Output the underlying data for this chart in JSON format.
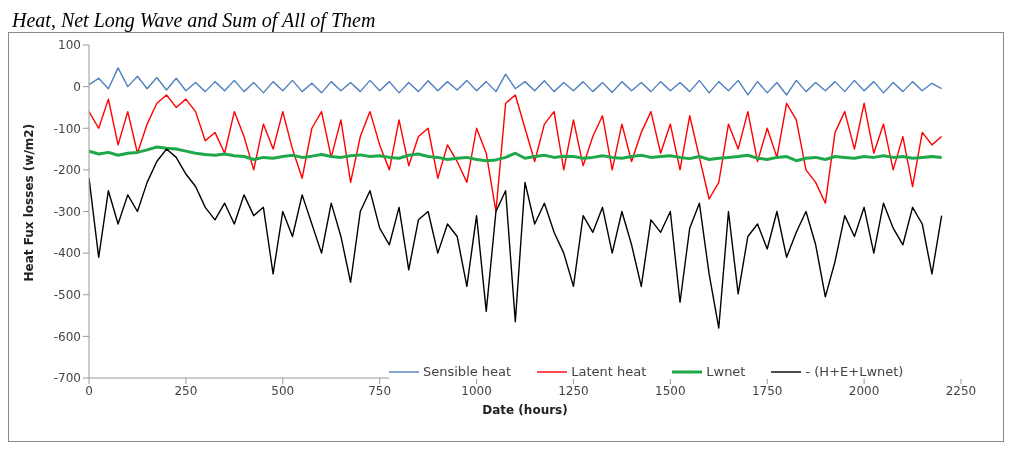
{
  "chart_data": {
    "type": "line",
    "title": "Heat, Net Long Wave and Sum of All of Them",
    "xlabel": "Date (hours)",
    "ylabel": "Heat Fux losses (w/m2)",
    "x": [
      0,
      25,
      50,
      75,
      100,
      125,
      150,
      175,
      200,
      225,
      250,
      275,
      300,
      325,
      350,
      375,
      400,
      425,
      450,
      475,
      500,
      525,
      550,
      575,
      600,
      625,
      650,
      675,
      700,
      725,
      750,
      775,
      800,
      825,
      850,
      875,
      900,
      925,
      950,
      975,
      1000,
      1025,
      1050,
      1075,
      1100,
      1125,
      1150,
      1175,
      1200,
      1225,
      1250,
      1275,
      1300,
      1325,
      1350,
      1375,
      1400,
      1425,
      1450,
      1475,
      1500,
      1525,
      1550,
      1575,
      1600,
      1625,
      1650,
      1675,
      1700,
      1725,
      1750,
      1775,
      1800,
      1825,
      1850,
      1875,
      1900,
      1925,
      1950,
      1975,
      2000,
      2025,
      2050,
      2075,
      2100,
      2125,
      2150,
      2175,
      2200
    ],
    "series": [
      {
        "name": "Sensible heat",
        "color": "#4f81bd",
        "values": [
          5,
          20,
          -5,
          45,
          0,
          25,
          -5,
          22,
          -8,
          20,
          -10,
          10,
          -12,
          12,
          -10,
          15,
          -12,
          10,
          -15,
          12,
          -10,
          15,
          -12,
          8,
          -15,
          12,
          -10,
          10,
          -12,
          15,
          -10,
          12,
          -15,
          10,
          -12,
          14,
          -10,
          12,
          -8,
          15,
          -10,
          12,
          -12,
          30,
          -5,
          12,
          -10,
          14,
          -12,
          10,
          -10,
          12,
          -12,
          10,
          -14,
          12,
          -10,
          10,
          -12,
          12,
          -10,
          10,
          -12,
          15,
          -15,
          12,
          -10,
          15,
          -20,
          12,
          -15,
          10,
          -20,
          15,
          -12,
          10,
          -10,
          12,
          -12,
          15,
          -10,
          12,
          -15,
          10,
          -12,
          12,
          -10,
          8,
          -5
        ]
      },
      {
        "name": "Latent heat",
        "color": "#ff0000",
        "values": [
          -60,
          -100,
          -30,
          -140,
          -60,
          -160,
          -90,
          -40,
          -20,
          -50,
          -30,
          -60,
          -130,
          -110,
          -160,
          -60,
          -120,
          -200,
          -90,
          -150,
          -60,
          -150,
          -220,
          -100,
          -60,
          -170,
          -80,
          -230,
          -120,
          -60,
          -140,
          -200,
          -80,
          -190,
          -120,
          -100,
          -220,
          -140,
          -180,
          -230,
          -100,
          -160,
          -300,
          -40,
          -20,
          -100,
          -180,
          -90,
          -60,
          -200,
          -80,
          -190,
          -120,
          -70,
          -200,
          -90,
          -180,
          -110,
          -60,
          -160,
          -90,
          -200,
          -70,
          -170,
          -270,
          -230,
          -90,
          -150,
          -60,
          -180,
          -100,
          -170,
          -40,
          -80,
          -200,
          -230,
          -280,
          -110,
          -60,
          -150,
          -40,
          -160,
          -90,
          -200,
          -120,
          -240,
          -110,
          -140,
          -120
        ]
      },
      {
        "name": "Lwnet",
        "color": "#1fa84a",
        "values": [
          -155,
          -162,
          -158,
          -165,
          -160,
          -158,
          -152,
          -145,
          -148,
          -150,
          -155,
          -160,
          -163,
          -165,
          -162,
          -166,
          -168,
          -175,
          -170,
          -172,
          -168,
          -165,
          -170,
          -167,
          -163,
          -168,
          -170,
          -166,
          -164,
          -168,
          -166,
          -170,
          -172,
          -165,
          -162,
          -168,
          -170,
          -175,
          -172,
          -170,
          -175,
          -178,
          -176,
          -170,
          -160,
          -172,
          -168,
          -165,
          -170,
          -167,
          -168,
          -172,
          -170,
          -166,
          -170,
          -172,
          -168,
          -165,
          -170,
          -168,
          -166,
          -170,
          -173,
          -168,
          -175,
          -172,
          -170,
          -168,
          -165,
          -172,
          -175,
          -170,
          -168,
          -178,
          -172,
          -170,
          -175,
          -168,
          -170,
          -172,
          -168,
          -170,
          -166,
          -170,
          -168,
          -172,
          -170,
          -168,
          -170
        ]
      },
      {
        "name": "- (H+E+Lwnet)",
        "color": "#000000",
        "values": [
          -220,
          -410,
          -250,
          -330,
          -260,
          -300,
          -230,
          -180,
          -150,
          -170,
          -210,
          -240,
          -290,
          -320,
          -280,
          -330,
          -260,
          -310,
          -290,
          -450,
          -300,
          -360,
          -260,
          -330,
          -400,
          -280,
          -360,
          -470,
          -300,
          -250,
          -340,
          -380,
          -290,
          -440,
          -320,
          -300,
          -400,
          -330,
          -360,
          -480,
          -310,
          -540,
          -300,
          -250,
          -565,
          -230,
          -330,
          -280,
          -350,
          -400,
          -480,
          -310,
          -350,
          -290,
          -400,
          -300,
          -380,
          -480,
          -320,
          -350,
          -300,
          -518,
          -340,
          -280,
          -450,
          -580,
          -300,
          -498,
          -360,
          -330,
          -390,
          -300,
          -410,
          -350,
          -300,
          -380,
          -505,
          -420,
          -310,
          -360,
          -290,
          -400,
          -280,
          -340,
          -380,
          -290,
          -330,
          -450,
          -310
        ]
      }
    ],
    "xlim": [
      0,
      2250
    ],
    "xticks": [
      0,
      250,
      500,
      750,
      1000,
      1250,
      1500,
      1750,
      2000,
      2250
    ],
    "ylim": [
      -700,
      100
    ],
    "yticks": [
      -700,
      -600,
      -500,
      -400,
      -300,
      -200,
      -100,
      0,
      100
    ],
    "grid": false,
    "legend": "bottom",
    "marker": "none",
    "line_style": "solid"
  }
}
